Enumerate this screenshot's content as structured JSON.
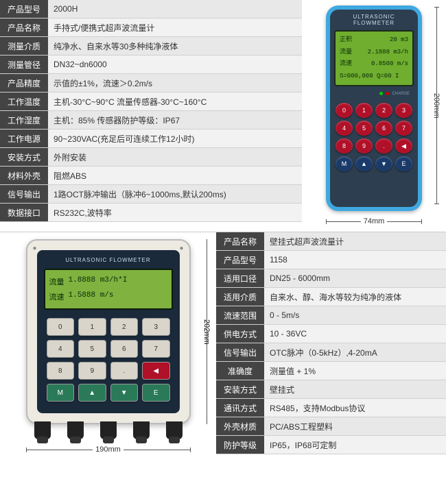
{
  "top": {
    "specs": [
      {
        "label": "产品型号",
        "value": "2000H"
      },
      {
        "label": "产品名称",
        "value": "手持式/便携式超声波流量计"
      },
      {
        "label": "测量介质",
        "value": "纯净水、自来水等30多种纯净液体"
      },
      {
        "label": "测量管径",
        "value": "DN32~dn6000"
      },
      {
        "label": "产品精度",
        "value": "示值的±1%，流速＞0.2m/s"
      },
      {
        "label": "工作温度",
        "value": "主机-30°C~90°C   流量传感器-30°C~160°C"
      },
      {
        "label": "工作湿度",
        "value": "主机：85%  传感器防护等级：IP67"
      },
      {
        "label": "工作电源",
        "value": "90~230VAC(充足后可连续工作12小时)"
      },
      {
        "label": "安装方式",
        "value": "外附安装"
      },
      {
        "label": "材料外壳",
        "value": "阻燃ABS"
      },
      {
        "label": "信号输出",
        "value": "1路OCT脉冲输出（脉冲6~1000ms,默认200ms)"
      },
      {
        "label": "数据接口",
        "value": "RS232C,波特率"
      }
    ],
    "device": {
      "title": "ULTRASONIC FLOWMETER",
      "screen": {
        "l1a": "正积",
        "l1b": "20 m3",
        "l2a": "流量",
        "l2b": "2.1888 m3/h",
        "l3a": "流速",
        "l3b": "0.8500 m/s",
        "l4": "S=000,000  Q=00 I"
      },
      "charge_label": "CHARGE",
      "keys": [
        "0",
        "1",
        "2",
        "3",
        "4",
        "5",
        "6",
        "7",
        "8",
        "9",
        ".",
        "◀",
        "M",
        "▲",
        "▼",
        "E"
      ],
      "dim_h": "74mm",
      "dim_v": "200mm"
    }
  },
  "bottom": {
    "device": {
      "title": "ULTRASONIC FLOWMETER",
      "screen": {
        "l1a": "流量",
        "l1b": "1.8888 m3/h*I",
        "l2a": "流速",
        "l2b": "1.5888 m/s"
      },
      "keys": [
        "0",
        "1",
        "2",
        "3",
        "4",
        "5",
        "6",
        "7",
        "8",
        "9",
        ".",
        "◀",
        "M",
        "▲",
        "▼",
        "E"
      ],
      "dim_h": "190mm",
      "dim_v": "202mm"
    },
    "specs": [
      {
        "label": "产品名称",
        "value": "壁挂式超声波流量计"
      },
      {
        "label": "产品型号",
        "value": "1158"
      },
      {
        "label": "适用口径",
        "value": "DN25 - 6000mm"
      },
      {
        "label": "适用介质",
        "value": "自来水、醇、海水等较为纯净的液体"
      },
      {
        "label": "流速范围",
        "value": "0 - 5m/s"
      },
      {
        "label": "供电方式",
        "value": "10 - 36VC"
      },
      {
        "label": "信号输出",
        "value": "OTC脉冲（0-5kHz）,4-20mA"
      },
      {
        "label": "准确度",
        "value": "测量值 + 1%"
      },
      {
        "label": "安装方式",
        "value": "壁挂式"
      },
      {
        "label": "通讯方式",
        "value": "RS485，支持Modbus协议"
      },
      {
        "label": "外壳材质",
        "value": "PC/ABS工程塑料"
      },
      {
        "label": "防护等级",
        "value": "IP65，IP68可定制"
      }
    ]
  }
}
